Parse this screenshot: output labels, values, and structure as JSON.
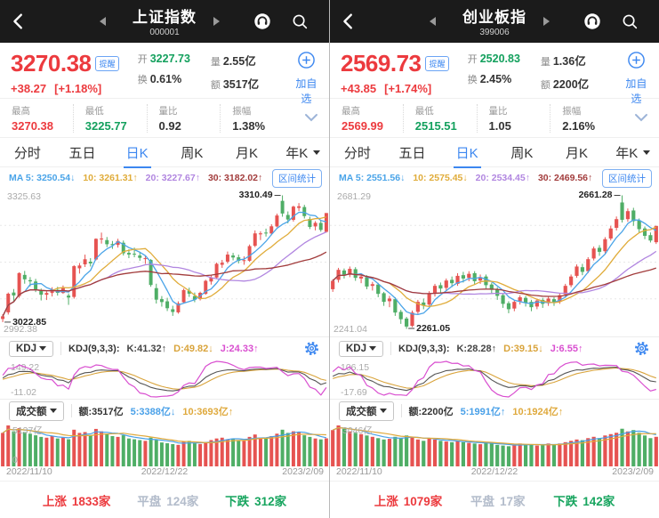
{
  "colors": {
    "red": "#ec3a3e",
    "green": "#13a05d",
    "candle_red": "#e65351",
    "candle_green": "#4fae66",
    "blue": "#3c87f0",
    "gray": "#999999",
    "flat_gray": "#b3bccb",
    "ma5": "#4aa4e8",
    "ma10": "#e0ac3a",
    "ma20": "#b186e0",
    "ma30": "#a23c3c",
    "kdj_k": "#555555",
    "kdj_d": "#d9a43c",
    "kdj_j": "#d94fd0",
    "vol_ma5": "#49a0e8",
    "vol_ma10": "#dfa93c"
  },
  "panels": [
    {
      "header": {
        "title": "上证指数",
        "code": "000001"
      },
      "quote": {
        "price": "3270.38",
        "alert_badge": "提醒",
        "change": "+38.27",
        "change_pct": "[+1.18%]",
        "open_label": "开",
        "open": "3227.73",
        "turnover_label": "换",
        "turnover": "0.61%",
        "vol_label": "量",
        "vol": "2.55亿",
        "amount_label": "额",
        "amount": "3517亿",
        "add_watch": "加自选"
      },
      "stats": [
        {
          "label": "最高",
          "value": "3270.38",
          "tone": "red"
        },
        {
          "label": "最低",
          "value": "3225.77",
          "tone": "green"
        },
        {
          "label": "量比",
          "value": "0.92",
          "tone": "dark"
        },
        {
          "label": "振幅",
          "value": "1.38%",
          "tone": "dark"
        }
      ],
      "tabs": {
        "items": [
          "分时",
          "五日",
          "日K",
          "周K",
          "月K",
          "年K"
        ],
        "active_index": 2
      },
      "ma": {
        "ma5": "MA 5: 3250.54↓",
        "ma10": "10: 3261.31↑",
        "ma20": "20: 3227.67↑",
        "ma30": "30: 3182.02↑",
        "range_button": "区间统计"
      },
      "kdj": {
        "selector": "KDJ",
        "params": "KDJ(9,3,3):",
        "k": "K:41.32↑",
        "d": "D:49.82↓",
        "j": "J:24.33↑",
        "max_label": "149.22",
        "min_label": "-11.02"
      },
      "volume": {
        "selector": "成交额",
        "amount": "额:3517亿",
        "ma5": "5:3388亿↓",
        "ma10": "10:3693亿↑",
        "max_label": "5137亿",
        "zero_label": "0"
      },
      "dates": [
        "2022/11/10",
        "2022/12/22",
        "2023/2/09"
      ],
      "advancers": {
        "up_label": "上涨",
        "up": "1833家",
        "flat_label": "平盘",
        "flat": "124家",
        "down_label": "下跌",
        "down": "312家"
      },
      "chart": {
        "type": "candlestick",
        "ymax": 3325.63,
        "ymin": 2992.38,
        "axis_max_label": "3325.63",
        "axis_min_label": "2992.38",
        "high_label": "3310.49",
        "low_label": "3022.85",
        "candles": [
          [
            3030,
            3036.1,
            3022.85,
            3041
          ],
          [
            3045,
            3087.3,
            3040,
            3090
          ],
          [
            3090,
            3083.4,
            3070,
            3098
          ],
          [
            3082,
            3134.1,
            3078,
            3136
          ],
          [
            3130,
            3120,
            3110,
            3139
          ],
          [
            3118,
            3115.4,
            3104,
            3125
          ],
          [
            3115,
            3097.2,
            3091,
            3121
          ],
          [
            3095,
            3085,
            3072,
            3099
          ],
          [
            3085,
            3088.9,
            3073,
            3093
          ],
          [
            3089,
            3096.9,
            3081,
            3102
          ],
          [
            3096,
            3089.3,
            3083,
            3103
          ],
          [
            3089,
            3101.7,
            3087,
            3106
          ],
          [
            3083,
            3078.6,
            3062,
            3088
          ],
          [
            3080,
            3149.8,
            3076,
            3152
          ],
          [
            3145,
            3151.3,
            3133,
            3157
          ],
          [
            3154,
            3165.5,
            3148,
            3176
          ],
          [
            3160,
            3156.1,
            3149,
            3168
          ],
          [
            3165,
            3211.8,
            3163,
            3213
          ],
          [
            3212,
            3212.5,
            3201,
            3226
          ],
          [
            3209,
            3199.6,
            3193,
            3216
          ],
          [
            3200,
            3197.4,
            3189,
            3207
          ],
          [
            3198,
            3207,
            3192,
            3212
          ],
          [
            3203,
            3179,
            3174,
            3208
          ],
          [
            3180,
            3176.3,
            3168,
            3188
          ],
          [
            3178,
            3176.5,
            3170,
            3192
          ],
          [
            3174,
            3168.7,
            3162,
            3182
          ],
          [
            3166,
            3167.9,
            3155,
            3174
          ],
          [
            3164,
            3107.1,
            3103,
            3166
          ],
          [
            3100,
            3073.8,
            3065,
            3110
          ],
          [
            3075,
            3068.4,
            3058,
            3082
          ],
          [
            3070,
            3054.4,
            3048,
            3078
          ],
          [
            3052,
            3045.9,
            3037,
            3060
          ],
          [
            3045,
            3065.6,
            3042,
            3070
          ],
          [
            3068,
            3095.6,
            3065,
            3099
          ],
          [
            3094,
            3087.4,
            3080,
            3101
          ],
          [
            3082,
            3073.7,
            3068,
            3090
          ],
          [
            3075,
            3089.3,
            3072,
            3092
          ],
          [
            3087,
            3116.5,
            3085,
            3119
          ],
          [
            3115,
            3123.5,
            3108,
            3129
          ],
          [
            3124,
            3155.2,
            3122,
            3158
          ],
          [
            3153,
            3157.6,
            3146,
            3164
          ],
          [
            3160,
            3176.1,
            3156,
            3183
          ],
          [
            3174,
            3169.5,
            3163,
            3180
          ],
          [
            3170,
            3161.8,
            3156,
            3176
          ],
          [
            3163,
            3163.5,
            3153,
            3172
          ],
          [
            3162,
            3195.3,
            3160,
            3199
          ],
          [
            3196,
            3224.2,
            3193,
            3231
          ],
          [
            3222,
            3224.3,
            3209,
            3229
          ],
          [
            3226,
            3224.4,
            3217,
            3235
          ],
          [
            3224,
            3240.3,
            3220,
            3245
          ],
          [
            3240,
            3264.8,
            3238,
            3269
          ],
          [
            3298,
            3269.3,
            3262,
            3310.49
          ],
          [
            3266,
            3255.7,
            3247,
            3274
          ],
          [
            3255,
            3284.9,
            3251,
            3287
          ],
          [
            3282,
            3285.7,
            3275,
            3293
          ],
          [
            3284,
            3263.4,
            3258,
            3289
          ],
          [
            3257,
            3238.7,
            3234,
            3262
          ],
          [
            3240,
            3248.1,
            3231,
            3252
          ],
          [
            3248,
            3232.1,
            3228,
            3255
          ],
          [
            3227.73,
            3270.38,
            3225.77,
            3270.38
          ]
        ],
        "volumes": [
          4200,
          5137,
          4400,
          4800,
          4300,
          4100,
          3900,
          3700,
          3600,
          3800,
          3500,
          3600,
          3400,
          4600,
          4200,
          4300,
          3900,
          4700,
          4400,
          4100,
          3800,
          3700,
          3900,
          3500,
          3400,
          3300,
          3200,
          3600,
          3300,
          3000,
          2900,
          2800,
          2700,
          3100,
          3200,
          2900,
          2800,
          3000,
          3300,
          3500,
          3600,
          3400,
          3500,
          3300,
          3200,
          3700,
          4000,
          3600,
          3500,
          3800,
          4100,
          4600,
          4200,
          4400,
          4300,
          3900,
          3700,
          3500,
          3388,
          3517
        ]
      }
    },
    {
      "header": {
        "title": "创业板指",
        "code": "399006"
      },
      "quote": {
        "price": "2569.73",
        "alert_badge": "提醒",
        "change": "+43.85",
        "change_pct": "[+1.74%]",
        "open_label": "开",
        "open": "2520.83",
        "turnover_label": "换",
        "turnover": "2.45%",
        "vol_label": "量",
        "vol": "1.36亿",
        "amount_label": "额",
        "amount": "2200亿",
        "add_watch": "加自选"
      },
      "stats": [
        {
          "label": "最高",
          "value": "2569.99",
          "tone": "red"
        },
        {
          "label": "最低",
          "value": "2515.51",
          "tone": "green"
        },
        {
          "label": "量比",
          "value": "1.05",
          "tone": "dark"
        },
        {
          "label": "振幅",
          "value": "2.16%",
          "tone": "dark"
        }
      ],
      "tabs": {
        "items": [
          "分时",
          "五日",
          "日K",
          "周K",
          "月K",
          "年K"
        ],
        "active_index": 2
      },
      "ma": {
        "ma5": "MA 5: 2551.56↓",
        "ma10": "10: 2575.45↓",
        "ma20": "20: 2534.45↑",
        "ma30": "30: 2469.56↑",
        "range_button": "区间统计"
      },
      "kdj": {
        "selector": "KDJ",
        "params": "KDJ(9,3,3):",
        "k": "K:28.28↑",
        "d": "D:39.15↓",
        "j": "J:6.55↑",
        "max_label": "106.15",
        "min_label": "-17.69"
      },
      "volume": {
        "selector": "成交额",
        "amount": "额:2200亿",
        "ma5": "5:1991亿↑",
        "ma10": "10:1924亿↑",
        "max_label": "3046亿",
        "zero_label": ""
      },
      "dates": [
        "2022/11/10",
        "2022/12/22",
        "2023/2/09"
      ],
      "advancers": {
        "up_label": "上涨",
        "up": "1079家",
        "flat_label": "平盘",
        "flat": "17家",
        "down_label": "下跌",
        "down": "142家"
      },
      "chart": {
        "type": "candlestick",
        "ymax": 2681.29,
        "ymin": 2241.04,
        "axis_max_label": "2681.29",
        "axis_min_label": "2241.04",
        "high_label": "2661.28",
        "low_label": "2261.05",
        "candles": [
          [
            2380,
            2405,
            2372,
            2410
          ],
          [
            2408,
            2438,
            2400,
            2444
          ],
          [
            2436,
            2421,
            2412,
            2442
          ],
          [
            2423,
            2441,
            2416,
            2448
          ],
          [
            2440,
            2414,
            2405,
            2446
          ],
          [
            2412,
            2418,
            2398,
            2426
          ],
          [
            2416,
            2388,
            2380,
            2422
          ],
          [
            2390,
            2395,
            2376,
            2402
          ],
          [
            2394,
            2366,
            2356,
            2399
          ],
          [
            2368,
            2342,
            2330,
            2372
          ],
          [
            2344,
            2352,
            2326,
            2360
          ],
          [
            2350,
            2310,
            2300,
            2356
          ],
          [
            2312,
            2290,
            2276,
            2318
          ],
          [
            2292,
            2268,
            2261.05,
            2297
          ],
          [
            2270,
            2310,
            2266,
            2316
          ],
          [
            2312,
            2342,
            2306,
            2348
          ],
          [
            2340,
            2332,
            2320,
            2352
          ],
          [
            2334,
            2368,
            2328,
            2374
          ],
          [
            2366,
            2390,
            2358,
            2396
          ],
          [
            2392,
            2382,
            2370,
            2400
          ],
          [
            2384,
            2406,
            2376,
            2412
          ],
          [
            2408,
            2398,
            2386,
            2418
          ],
          [
            2396,
            2420,
            2390,
            2428
          ],
          [
            2422,
            2412,
            2400,
            2432
          ],
          [
            2414,
            2426,
            2404,
            2434
          ],
          [
            2428,
            2404,
            2394,
            2434
          ],
          [
            2406,
            2416,
            2396,
            2424
          ],
          [
            2418,
            2392,
            2382,
            2424
          ],
          [
            2394,
            2378,
            2366,
            2400
          ],
          [
            2380,
            2360,
            2348,
            2386
          ],
          [
            2362,
            2336,
            2324,
            2366
          ],
          [
            2338,
            2320,
            2308,
            2344
          ],
          [
            2322,
            2342,
            2314,
            2348
          ],
          [
            2344,
            2356,
            2334,
            2362
          ],
          [
            2354,
            2340,
            2328,
            2360
          ],
          [
            2342,
            2326,
            2314,
            2348
          ],
          [
            2328,
            2346,
            2320,
            2352
          ],
          [
            2348,
            2336,
            2324,
            2354
          ],
          [
            2338,
            2352,
            2330,
            2358
          ],
          [
            2350,
            2340,
            2330,
            2356
          ],
          [
            2342,
            2362,
            2336,
            2368
          ],
          [
            2364,
            2390,
            2358,
            2396
          ],
          [
            2392,
            2418,
            2386,
            2424
          ],
          [
            2420,
            2448,
            2414,
            2454
          ],
          [
            2446,
            2432,
            2422,
            2456
          ],
          [
            2434,
            2470,
            2428,
            2476
          ],
          [
            2472,
            2502,
            2466,
            2508
          ],
          [
            2504,
            2492,
            2480,
            2512
          ],
          [
            2494,
            2530,
            2488,
            2536
          ],
          [
            2532,
            2562,
            2526,
            2570
          ],
          [
            2564,
            2590,
            2556,
            2598
          ],
          [
            2640,
            2588,
            2580,
            2661.28
          ],
          [
            2590,
            2614,
            2582,
            2622
          ],
          [
            2616,
            2584,
            2570,
            2624
          ],
          [
            2586,
            2560,
            2548,
            2592
          ],
          [
            2562,
            2540,
            2530,
            2568
          ],
          [
            2542,
            2525.9,
            2520,
            2550
          ],
          [
            2520.83,
            2569.73,
            2515.51,
            2569.99
          ]
        ],
        "volumes": [
          2700,
          3046,
          2800,
          2600,
          2500,
          2400,
          2300,
          2200,
          2100,
          2000,
          2050,
          2200,
          2100,
          2300,
          2200,
          2000,
          1900,
          2100,
          2000,
          1900,
          1850,
          1800,
          1900,
          1800,
          1750,
          1700,
          1650,
          1800,
          1700,
          1600,
          1550,
          1500,
          1600,
          1700,
          1650,
          1600,
          1550,
          1600,
          1700,
          1650,
          1700,
          1800,
          1900,
          2000,
          1950,
          2100,
          2200,
          2100,
          2300,
          2400,
          2500,
          2800,
          2600,
          2700,
          2500,
          2300,
          2100,
          2200
        ]
      }
    }
  ]
}
